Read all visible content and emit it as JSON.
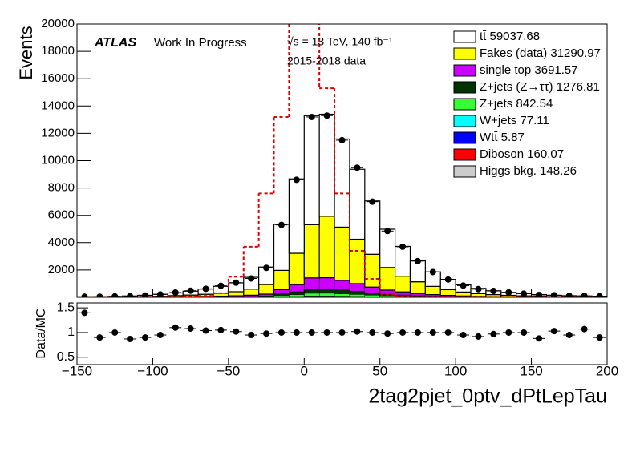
{
  "chart_data": {
    "type": "histogram",
    "xlabel": "2tag2pjet_0ptv_dPtLepTau",
    "ylabel": "Events",
    "atlas": "ATLAS",
    "status": "Work In Progress",
    "energy": "√s = 13 TeV, 140 fb⁻¹",
    "dataset": "2015-2018 data",
    "bins": [
      -150,
      -140,
      -130,
      -120,
      -110,
      -100,
      -90,
      -80,
      -70,
      -60,
      -50,
      -40,
      -30,
      -20,
      -10,
      0,
      10,
      20,
      30,
      40,
      50,
      60,
      70,
      80,
      90,
      100,
      110,
      120,
      130,
      140,
      150,
      160,
      170,
      180,
      190,
      200
    ],
    "xlim": [
      -150,
      200
    ],
    "xticks": [
      {
        "value": -150,
        "label": "−150"
      },
      {
        "value": -100,
        "label": "−100"
      },
      {
        "value": -50,
        "label": "−50"
      },
      0,
      50,
      100,
      150,
      200
    ],
    "ylim": [
      0,
      20000
    ],
    "yticks": [
      2000,
      4000,
      6000,
      8000,
      10000,
      12000,
      14000,
      16000,
      18000,
      20000
    ],
    "series": [
      {
        "name": "tt̄ 59037.68",
        "color": "#ffffff",
        "values": [
          17,
          30,
          43,
          59,
          95,
          138,
          198,
          285,
          380,
          500,
          645,
          855,
          1280,
          3369,
          5440,
          7980,
          7469,
          6449,
          5119,
          3900,
          2805,
          2179,
          1535,
          1065,
          749,
          519,
          385,
          282,
          214,
          163,
          120,
          90,
          73,
          61,
          50
        ]
      },
      {
        "name": "Fakes (data) 31290.97",
        "color": "#ffff00",
        "values": [
          10,
          15,
          20,
          30,
          40,
          60,
          90,
          120,
          160,
          220,
          300,
          450,
          700,
          1400,
          2300,
          3900,
          4500,
          3900,
          3250,
          2400,
          1650,
          1150,
          850,
          600,
          420,
          290,
          200,
          150,
          110,
          80,
          60,
          45,
          35,
          28,
          22
        ]
      },
      {
        "name": "single top 3691.57",
        "color": "#cc00ff",
        "values": [
          2,
          3,
          4,
          6,
          9,
          13,
          19,
          27,
          36,
          48,
          63,
          87,
          132,
          318,
          516,
          792,
          798,
          690,
          558,
          420,
          297,
          222,
          159,
          111,
          78,
          54,
          39,
          29,
          22,
          16,
          12,
          9,
          7,
          6,
          5
        ]
      },
      {
        "name": "Z+jets (Z→ττ) 1276.81",
        "color": "#003300",
        "values": [
          1,
          1,
          2,
          3,
          4,
          6,
          8,
          11,
          15,
          20,
          26,
          36,
          55,
          133,
          215,
          330,
          333,
          288,
          233,
          175,
          124,
          93,
          66,
          46,
          33,
          23,
          16,
          12,
          9,
          7,
          5,
          4,
          3,
          3,
          2
        ]
      },
      {
        "name": "Z+jets 842.54",
        "color": "#33ff33",
        "values": [
          0,
          1,
          1,
          2,
          2,
          3,
          5,
          7,
          9,
          12,
          16,
          22,
          33,
          80,
          129,
          198,
          200,
          173,
          140,
          105,
          74,
          56,
          40,
          28,
          20,
          14,
          10,
          7,
          5,
          4,
          3,
          2,
          2,
          2,
          1
        ]
      },
      {
        "name": "W+jets 77.11",
        "color": "#00ffff",
        "values": [
          0,
          0,
          0,
          0,
          0,
          0,
          0,
          1,
          1,
          1,
          2,
          2,
          3,
          8,
          13,
          20,
          20,
          17,
          14,
          10,
          7,
          6,
          4,
          3,
          2,
          1,
          1,
          1,
          0,
          0,
          0,
          0,
          0,
          0,
          0
        ]
      },
      {
        "name": "Wtt̄ 5.87",
        "color": "#0000ff",
        "values": [
          0,
          0,
          0,
          0,
          0,
          0,
          0,
          0,
          0,
          0,
          0,
          0,
          0,
          1,
          1,
          1,
          1,
          1,
          1,
          0,
          0,
          0,
          0,
          0,
          0,
          0,
          0,
          0,
          0,
          0,
          0,
          0,
          0,
          0,
          0
        ]
      },
      {
        "name": "Diboson 160.07",
        "color": "#ff0000",
        "values": [
          0,
          0,
          0,
          0,
          0,
          1,
          1,
          1,
          2,
          2,
          3,
          4,
          7,
          16,
          26,
          40,
          40,
          35,
          28,
          21,
          15,
          11,
          8,
          6,
          4,
          3,
          2,
          1,
          1,
          1,
          1,
          0,
          0,
          0,
          0
        ]
      },
      {
        "name": "Higgs bkg. 148.26",
        "color": "#cccccc",
        "values": [
          0,
          0,
          0,
          0,
          0,
          1,
          1,
          1,
          2,
          2,
          3,
          4,
          6,
          15,
          25,
          38,
          39,
          34,
          27,
          20,
          14,
          10,
          7,
          5,
          4,
          3,
          2,
          1,
          1,
          1,
          0,
          0,
          0,
          0,
          0
        ]
      }
    ],
    "data": {
      "color": "#000000",
      "values": [
        42,
        45,
        70,
        87,
        135,
        209,
        352,
        486,
        624,
        840,
        1071,
        1378,
        2156,
        5300,
        8600,
        13200,
        13300,
        11500,
        9486,
        7000,
        4851,
        3700,
        2650,
        1850,
        1300,
        855,
        598,
        466,
        360,
        270,
        176,
        155,
        114,
        107,
        72
      ]
    },
    "signal": {
      "color": "#dd0000",
      "style": "dashed",
      "values": [
        20,
        20,
        20,
        20,
        20,
        30,
        40,
        60,
        100,
        300,
        1500,
        3700,
        7600,
        13200,
        22000,
        21000,
        15300,
        7600,
        3400,
        1350,
        200,
        60,
        20,
        20,
        20,
        20,
        20,
        20,
        20,
        20,
        20,
        20,
        20,
        20,
        20
      ]
    },
    "ratio": {
      "ylabel": "Data/MC",
      "ylim": [
        0.35,
        1.6
      ],
      "yticks": [
        0.5,
        1,
        1.5
      ],
      "values": [
        1.4,
        0.9,
        1.0,
        0.87,
        0.9,
        0.95,
        1.1,
        1.08,
        1.04,
        1.05,
        1.02,
        0.95,
        0.98,
        1.0,
        1.0,
        1.0,
        1.0,
        1.0,
        1.02,
        1.0,
        0.98,
        1.0,
        1.0,
        1.0,
        1.0,
        0.95,
        0.92,
        0.97,
        1.0,
        1.0,
        0.88,
        1.03,
        0.95,
        1.07,
        0.9
      ]
    }
  }
}
